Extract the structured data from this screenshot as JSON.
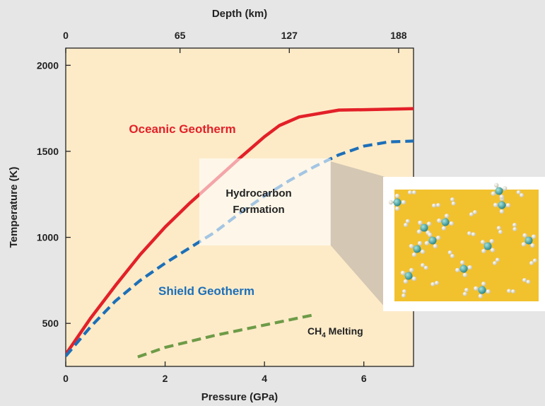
{
  "chart_data": {
    "type": "line",
    "title": "",
    "xlabel": "Pressure (GPa)",
    "ylabel": "Temperature (K)",
    "top_xlabel": "Depth (km)",
    "xlim": [
      0,
      7
    ],
    "ylim": [
      250,
      2100
    ],
    "x_ticks": [
      0,
      2,
      4,
      6
    ],
    "x_tick_labels": [
      "0",
      "2",
      "4",
      "6"
    ],
    "y_ticks": [
      500,
      1000,
      1500,
      2000
    ],
    "y_tick_labels": [
      "500",
      "1000",
      "1500",
      "2000"
    ],
    "top_ticks": [
      0,
      2.3,
      4.5,
      6.7
    ],
    "top_tick_labels": [
      "0",
      "65",
      "127",
      "188"
    ],
    "grid": false,
    "plot_background": "#fdebc8",
    "series": [
      {
        "name": "Oceanic Geotherm",
        "color": "#e32028",
        "dash": "solid",
        "x": [
          0,
          0.5,
          1,
          1.5,
          2,
          2.5,
          3,
          3.5,
          4,
          4.3,
          4.7,
          5.5,
          6,
          6.5,
          7
        ],
        "y": [
          320,
          530,
          720,
          900,
          1060,
          1200,
          1330,
          1460,
          1585,
          1650,
          1700,
          1740,
          1742,
          1745,
          1748
        ]
      },
      {
        "name": "Shield Geotherm",
        "color": "#1c6fb8",
        "dash": "dashed",
        "x": [
          0,
          0.5,
          1,
          1.5,
          2,
          2.5,
          3,
          3.5,
          4,
          4.5,
          5,
          5.5,
          6,
          6.5,
          7
        ],
        "y": [
          310,
          480,
          630,
          750,
          850,
          940,
          1030,
          1140,
          1240,
          1330,
          1410,
          1480,
          1530,
          1555,
          1560
        ]
      },
      {
        "name": "CH4 Melting",
        "color": "#6e9b47",
        "dash": "dashed",
        "x": [
          1.45,
          2,
          2.5,
          3,
          3.5,
          4,
          4.5,
          5
        ],
        "y": [
          305,
          360,
          395,
          430,
          460,
          490,
          520,
          550
        ]
      }
    ],
    "series_labels": {
      "oceanic": "Oceanic Geotherm",
      "shield": "Shield Geotherm",
      "ch4_main": "CH",
      "ch4_sub": "4",
      "ch4_rest": " Melting"
    },
    "annotation": {
      "line1": "Hydrocarbon",
      "line2": "Formation",
      "x_range": [
        2.7,
        5.3
      ],
      "y_range": [
        975,
        1705
      ]
    }
  }
}
